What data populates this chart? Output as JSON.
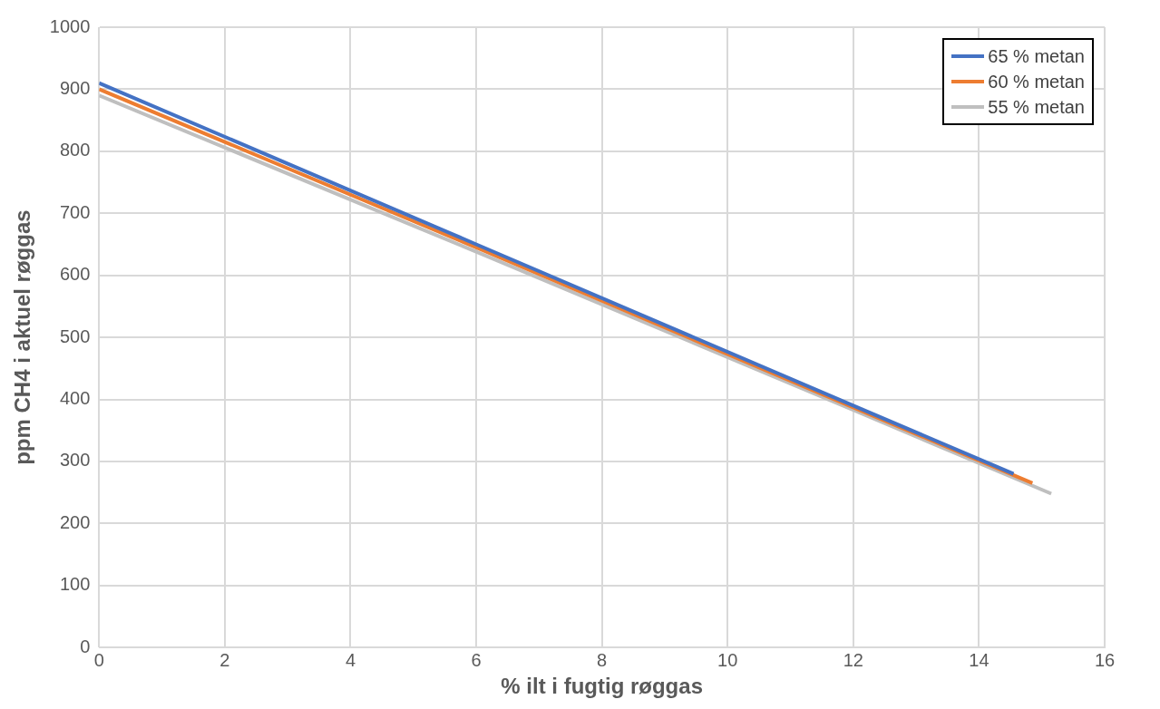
{
  "chart_data": {
    "type": "line",
    "xlabel": "% ilt i fugtig røggas",
    "ylabel": "ppm CH4 i aktuel røggas",
    "xlim": [
      0,
      16
    ],
    "xticks": [
      0,
      2,
      4,
      6,
      8,
      10,
      12,
      14,
      16
    ],
    "ylim": [
      0,
      1000
    ],
    "yticks": [
      0,
      100,
      200,
      300,
      400,
      500,
      600,
      700,
      800,
      900,
      1000
    ],
    "grid": true,
    "legend": "top right",
    "marker": "none",
    "line_style": "solid",
    "series": [
      {
        "name": "65 % metan",
        "color": "#4472c4",
        "x": [
          0,
          6,
          12,
          14.55
        ],
        "values": [
          910,
          650,
          390,
          280
        ]
      },
      {
        "name": "60 % metan",
        "color": "#ed7d31",
        "x": [
          0,
          6,
          12,
          14.85
        ],
        "values": [
          900,
          645,
          387,
          265
        ]
      },
      {
        "name": "55 % metan",
        "color": "#bfbfbf",
        "x": [
          0,
          6,
          12,
          15.15
        ],
        "values": [
          890,
          638,
          383,
          248
        ]
      }
    ]
  }
}
